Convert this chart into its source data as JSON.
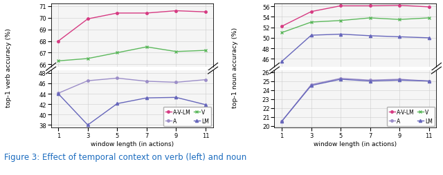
{
  "x": [
    1,
    3,
    5,
    7,
    9,
    11
  ],
  "left_top": {
    "AV_LM": [
      68.0,
      69.9,
      70.4,
      70.4,
      70.6,
      70.5
    ],
    "V": [
      66.3,
      66.5,
      67.0,
      67.5,
      67.1,
      67.2
    ],
    "ylim": [
      65.8,
      71.2
    ],
    "yticks": [
      66,
      67,
      68,
      69,
      70,
      71
    ]
  },
  "left_bot": {
    "A": [
      44.1,
      46.5,
      47.0,
      46.4,
      46.2,
      46.7
    ],
    "LM": [
      44.0,
      38.0,
      42.1,
      43.2,
      43.3,
      41.9
    ],
    "ylim": [
      37.5,
      48.5
    ],
    "yticks": [
      38,
      40,
      42,
      44,
      46,
      48
    ]
  },
  "right_top": {
    "AV_LM": [
      52.2,
      55.0,
      56.1,
      56.1,
      56.2,
      55.9
    ],
    "V": [
      51.0,
      53.0,
      53.3,
      53.8,
      53.5,
      53.8
    ],
    "LM": [
      45.5,
      50.5,
      50.7,
      50.4,
      50.2,
      50.0
    ],
    "ylim": [
      44.5,
      56.5
    ],
    "yticks": [
      46,
      48,
      50,
      52,
      54,
      56
    ]
  },
  "right_bot": {
    "A": [
      20.5,
      24.6,
      25.3,
      25.1,
      25.2,
      25.0
    ],
    "LM": [
      20.5,
      24.5,
      25.2,
      25.0,
      25.1,
      25.0
    ],
    "ylim": [
      19.8,
      26.2
    ],
    "yticks": [
      20,
      21,
      22,
      23,
      24,
      25,
      26
    ]
  },
  "colors": {
    "AV_LM": "#d63a82",
    "V": "#5cb85c",
    "A": "#9b8dc8",
    "LM": "#6666bb"
  },
  "xlabel": "window length (in actions)",
  "ylabel_left": "top-1 verb accuracy (%)",
  "ylabel_right": "top-1 noun accuracy (%)",
  "xticks": [
    1,
    3,
    5,
    7,
    9,
    11
  ],
  "caption": "Figure 3: Effect of temporal context on verb (left) and noun",
  "bg_color": "#f5f5f5"
}
